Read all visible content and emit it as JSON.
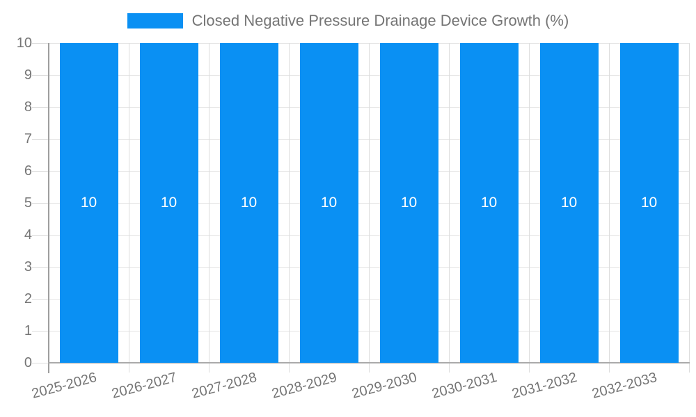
{
  "legend": {
    "label": "Closed Negative Pressure Drainage Device Growth (%)"
  },
  "chart_data": {
    "type": "bar",
    "title": "",
    "xlabel": "",
    "ylabel": "",
    "categories": [
      "2025-2026",
      "2026-2027",
      "2027-2028",
      "2028-2029",
      "2029-2030",
      "2030-2031",
      "2031-2032",
      "2032-2033"
    ],
    "series": [
      {
        "name": "Closed Negative Pressure Drainage Device Growth (%)",
        "values": [
          10,
          10,
          10,
          10,
          10,
          10,
          10,
          10
        ]
      }
    ],
    "data_labels": [
      "10",
      "10",
      "10",
      "10",
      "10",
      "10",
      "10",
      "10"
    ],
    "ylim": [
      0,
      10
    ],
    "yticks": [
      0,
      1,
      2,
      3,
      4,
      5,
      6,
      7,
      8,
      9,
      10
    ],
    "grid": true,
    "legend_position": "top-center",
    "colors": {
      "bar": "#0a90f3",
      "grid_horizontal": "#e6e6e6",
      "grid_vertical": "#dcdcdc",
      "axis": "#aaaaaa",
      "axis_y": "#9e9e9e",
      "tick": "#dddddd",
      "tick_label_text": "#757575",
      "data_label_text": "#ffffff"
    }
  }
}
